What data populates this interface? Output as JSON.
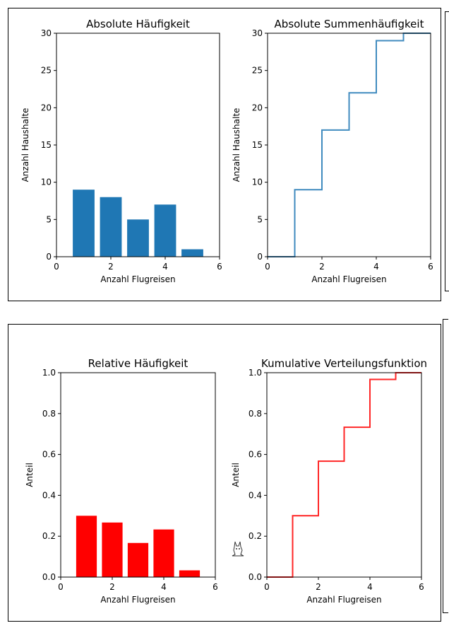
{
  "chart_data": [
    {
      "type": "bar",
      "title": "Absolute Häufigkeit",
      "xlabel": "Anzahl Flugreisen",
      "ylabel": "Anzahl Haushalte",
      "categories": [
        1,
        2,
        3,
        4,
        5
      ],
      "values": [
        9,
        8,
        5,
        7,
        1
      ],
      "xlim": [
        0,
        6
      ],
      "ylim": [
        0,
        30
      ],
      "xticks": [
        "0",
        "2",
        "4",
        "6"
      ],
      "yticks": [
        "0",
        "5",
        "10",
        "15",
        "20",
        "25",
        "30"
      ],
      "color": "#1f77b4",
      "grid": false
    },
    {
      "type": "line",
      "step": "post",
      "title": "Absolute Summenhäufigkeit",
      "xlabel": "Anzahl Flugreisen",
      "ylabel": "Anzahl Haushalte",
      "x": [
        0,
        1,
        2,
        3,
        4,
        5
      ],
      "y": [
        0,
        9,
        17,
        22,
        29,
        30
      ],
      "xlim": [
        0,
        6
      ],
      "ylim": [
        0,
        30
      ],
      "xticks": [
        "0",
        "2",
        "4",
        "6"
      ],
      "yticks": [
        "0",
        "5",
        "10",
        "15",
        "20",
        "25",
        "30"
      ],
      "color": "#1f77b4",
      "grid": false
    },
    {
      "type": "bar",
      "title": "Relative Häufigkeit",
      "xlabel": "Anzahl Flugreisen",
      "ylabel": "Anteil",
      "categories": [
        1,
        2,
        3,
        4,
        5
      ],
      "values": [
        0.3,
        0.267,
        0.167,
        0.233,
        0.033
      ],
      "xlim": [
        0,
        6
      ],
      "ylim": [
        0,
        1
      ],
      "xticks": [
        "0",
        "2",
        "4",
        "6"
      ],
      "yticks": [
        "0.0",
        "0.2",
        "0.4",
        "0.6",
        "0.8",
        "1.0"
      ],
      "color": "#ff0000",
      "grid": false
    },
    {
      "type": "line",
      "step": "post",
      "title": "Kumulative Verteilungsfunktion",
      "xlabel": "Anzahl Flugreisen",
      "ylabel": "Anteil",
      "x": [
        0,
        1,
        2,
        3,
        4,
        5
      ],
      "y": [
        0,
        0.3,
        0.567,
        0.733,
        0.967,
        1.0
      ],
      "xlim": [
        0,
        6
      ],
      "ylim": [
        0,
        1
      ],
      "xticks": [
        "0",
        "2",
        "4",
        "6"
      ],
      "yticks": [
        "0.0",
        "0.2",
        "0.4",
        "0.6",
        "0.8",
        "1.0"
      ],
      "color": "#ff0000",
      "grid": false
    }
  ]
}
